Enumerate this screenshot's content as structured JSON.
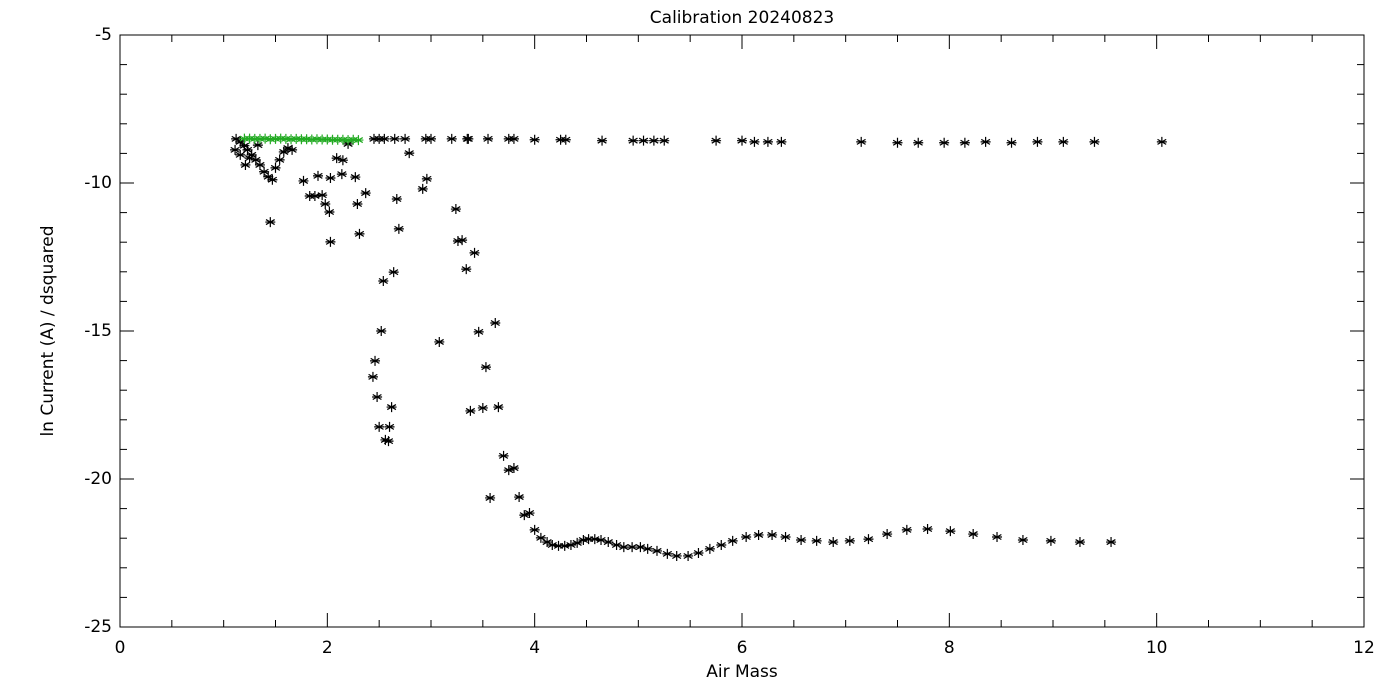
{
  "chart_data": {
    "type": "scatter",
    "title": "Calibration 20240823",
    "xlabel": "Air Mass",
    "ylabel": "ln Current (A) / dsquared",
    "xlim": [
      0,
      12
    ],
    "ylim": [
      -25,
      -5
    ],
    "xticks": [
      0,
      2,
      4,
      6,
      8,
      10,
      12
    ],
    "yticks": [
      -25,
      -20,
      -15,
      -10,
      -5
    ],
    "xminor": [
      0.5,
      1,
      1.5,
      2.5,
      3,
      3.5,
      4.5,
      5,
      5.5,
      6.5,
      7,
      7.5,
      8.5,
      9,
      9.5,
      10.5,
      11,
      11.5
    ],
    "yminor": [
      -24,
      -23,
      -22,
      -21,
      -19,
      -18,
      -17,
      -16,
      -14,
      -13,
      -12,
      -11,
      -9,
      -8,
      -7,
      -6
    ],
    "series": [
      {
        "color": "#000000",
        "x": [
          3.57,
          3.7,
          3.75,
          3.8,
          3.85,
          3.9,
          3.95,
          4.0,
          4.06,
          4.12,
          4.17,
          4.23,
          4.29,
          4.35,
          4.41,
          4.47,
          4.52,
          4.58,
          4.64,
          4.71,
          4.79,
          4.86,
          4.94,
          5.02,
          5.09,
          5.18,
          5.28,
          5.37,
          5.48,
          5.58,
          5.69,
          5.8,
          5.91,
          6.04,
          6.16,
          6.29,
          6.42,
          6.57,
          6.72,
          6.88,
          7.04,
          7.22,
          7.4,
          7.59,
          7.79,
          8.01,
          8.23,
          8.46,
          8.71,
          8.98,
          9.26,
          9.56,
          1.45,
          1.77,
          1.83,
          1.88,
          1.95,
          1.91,
          1.98,
          2.02,
          2.03,
          2.03,
          2.09,
          2.15,
          2.14,
          2.27,
          2.29,
          2.31,
          2.37,
          2.2,
          2.44,
          2.46,
          2.48,
          2.5,
          2.52,
          2.54,
          2.56,
          2.59,
          2.6,
          2.62,
          2.64,
          2.67,
          2.69,
          2.79,
          2.92,
          2.96,
          3.08,
          3.24,
          3.26,
          3.3,
          3.34,
          3.38,
          3.42,
          3.46,
          3.5,
          3.53,
          3.62,
          3.65,
          1.12,
          1.16,
          1.2,
          1.23,
          1.27,
          1.31,
          1.35,
          1.39,
          1.43,
          1.47,
          1.5,
          1.54,
          1.58,
          1.62,
          1.66,
          1.21,
          1.25,
          1.16,
          1.11,
          1.33,
          2.45,
          2.5,
          2.55,
          2.65,
          2.75,
          2.95,
          3.0,
          3.2,
          3.35,
          3.36,
          3.55,
          3.75,
          3.8,
          4.0,
          4.25,
          4.3,
          4.65,
          4.95,
          5.05,
          5.15,
          5.25,
          5.75,
          6.0,
          6.12,
          6.25,
          6.38,
          7.15,
          7.5,
          7.7,
          7.95,
          8.15,
          8.35,
          8.6,
          8.85,
          9.1,
          9.4,
          10.05
        ],
        "y": [
          -20.64,
          -19.22,
          -19.7,
          -19.63,
          -20.61,
          -21.22,
          -21.15,
          -21.72,
          -21.99,
          -22.13,
          -22.23,
          -22.26,
          -22.26,
          -22.23,
          -22.16,
          -22.06,
          -22.03,
          -22.03,
          -22.06,
          -22.13,
          -22.23,
          -22.3,
          -22.3,
          -22.3,
          -22.36,
          -22.43,
          -22.53,
          -22.6,
          -22.6,
          -22.5,
          -22.36,
          -22.23,
          -22.09,
          -21.96,
          -21.89,
          -21.89,
          -21.96,
          -22.06,
          -22.09,
          -22.13,
          -22.09,
          -22.03,
          -21.86,
          -21.72,
          -21.69,
          -21.76,
          -21.86,
          -21.96,
          -22.06,
          -22.09,
          -22.13,
          -22.13,
          -11.32,
          -9.93,
          -10.44,
          -10.44,
          -10.41,
          -9.76,
          -10.71,
          -10.98,
          -11.99,
          -9.83,
          -9.16,
          -9.23,
          -9.7,
          -9.8,
          -10.71,
          -11.72,
          -10.34,
          -8.68,
          -16.55,
          -16.01,
          -17.23,
          -18.24,
          -15.0,
          -13.31,
          -18.68,
          -18.72,
          -18.24,
          -17.57,
          -13.01,
          -10.54,
          -11.55,
          -8.99,
          -10.2,
          -9.86,
          -15.37,
          -10.88,
          -11.96,
          -11.93,
          -12.91,
          -17.7,
          -12.36,
          -15.03,
          -17.6,
          -16.22,
          -14.73,
          -17.57,
          -8.51,
          -8.61,
          -8.74,
          -8.88,
          -9.05,
          -9.22,
          -9.39,
          -9.62,
          -9.79,
          -9.89,
          -9.49,
          -9.22,
          -8.95,
          -8.82,
          -8.88,
          -9.39,
          -9.16,
          -9.05,
          -8.88,
          -8.72,
          -8.51,
          -8.51,
          -8.51,
          -8.51,
          -8.51,
          -8.51,
          -8.51,
          -8.51,
          -8.51,
          -8.51,
          -8.51,
          -8.51,
          -8.51,
          -8.54,
          -8.54,
          -8.54,
          -8.57,
          -8.57,
          -8.57,
          -8.57,
          -8.57,
          -8.57,
          -8.57,
          -8.61,
          -8.61,
          -8.61,
          -8.61,
          -8.64,
          -8.64,
          -8.64,
          -8.64,
          -8.61,
          -8.64,
          -8.61,
          -8.61,
          -8.61,
          -8.61
        ]
      },
      {
        "color": "#22aa22",
        "x": [
          1.2,
          1.25,
          1.3,
          1.35,
          1.4,
          1.45,
          1.5,
          1.55,
          1.6,
          1.65,
          1.7,
          1.75,
          1.8,
          1.85,
          1.9,
          1.95,
          2.0,
          2.05,
          2.1,
          2.15,
          2.2,
          2.25,
          2.3
        ],
        "y": [
          -8.5,
          -8.5,
          -8.51,
          -8.51,
          -8.5,
          -8.52,
          -8.51,
          -8.5,
          -8.51,
          -8.52,
          -8.51,
          -8.52,
          -8.52,
          -8.53,
          -8.52,
          -8.53,
          -8.53,
          -8.54,
          -8.54,
          -8.54,
          -8.55,
          -8.54,
          -8.55
        ]
      }
    ]
  }
}
